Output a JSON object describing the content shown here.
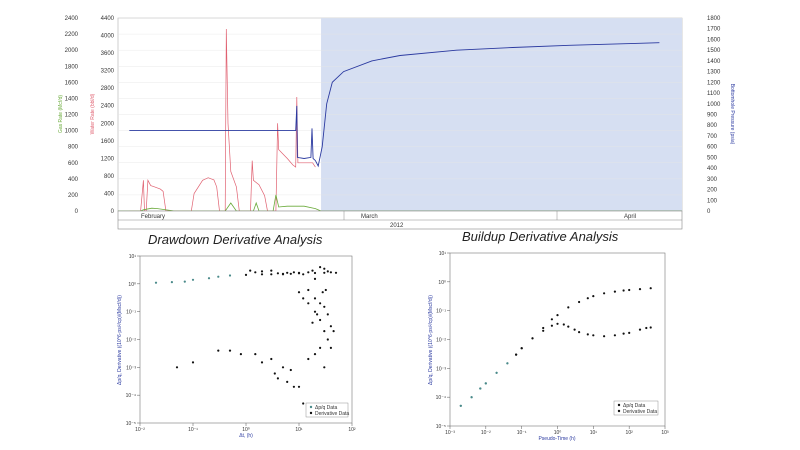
{
  "colors": {
    "gas": "#6aaa3a",
    "water": "#e06070",
    "pressure": "#2b3aa0",
    "shade": "#d6dff2",
    "points_light": "#4a8a8a",
    "points_dark": "#111111"
  },
  "sections": {
    "drawdown_title": "Drawdown Derivative Analysis",
    "buildup_title": "Buildup Derivative Analysis"
  },
  "chart_data": [
    {
      "type": "line",
      "id": "production-history",
      "y1label": "Gas Rate (Mcf/d)",
      "y2label": "Water Rate (bbl/d)",
      "y3label": "Bottomhole Pressure (psia)",
      "y1ticks": [
        "0",
        "200",
        "400",
        "600",
        "800",
        "1000",
        "1200",
        "1400",
        "1600",
        "1800",
        "2000",
        "2200",
        "2400"
      ],
      "y2ticks": [
        "0",
        "400",
        "800",
        "1200",
        "1600",
        "2000",
        "2400",
        "2800",
        "3200",
        "3600",
        "4000",
        "4400"
      ],
      "y3ticks": [
        "0",
        "100",
        "200",
        "300",
        "400",
        "500",
        "600",
        "700",
        "800",
        "900",
        "1000",
        "1100",
        "1200",
        "1300",
        "1400",
        "1500",
        "1600",
        "1700",
        "1800"
      ],
      "y1lim": [
        0,
        2400
      ],
      "y2lim": [
        0,
        4400
      ],
      "y3lim": [
        0,
        1800
      ],
      "months": [
        "February",
        "March",
        "April"
      ],
      "year": "2012",
      "shaded_from_x": 0.36,
      "series": [
        {
          "key": "water",
          "points": [
            [
              0.02,
              0
            ],
            [
              0.04,
              0
            ],
            [
              0.045,
              700
            ],
            [
              0.047,
              0
            ],
            [
              0.05,
              0
            ],
            [
              0.053,
              700
            ],
            [
              0.058,
              580
            ],
            [
              0.065,
              550
            ],
            [
              0.075,
              500
            ],
            [
              0.08,
              450
            ],
            [
              0.085,
              0
            ],
            [
              0.13,
              0
            ],
            [
              0.135,
              400
            ],
            [
              0.15,
              700
            ],
            [
              0.16,
              760
            ],
            [
              0.17,
              710
            ],
            [
              0.175,
              550
            ],
            [
              0.18,
              0
            ],
            [
              0.19,
              0
            ],
            [
              0.192,
              4150
            ],
            [
              0.195,
              2000
            ],
            [
              0.2,
              900
            ],
            [
              0.21,
              550
            ],
            [
              0.215,
              0
            ],
            [
              0.235,
              0
            ],
            [
              0.238,
              1150
            ],
            [
              0.24,
              700
            ],
            [
              0.25,
              600
            ],
            [
              0.26,
              350
            ],
            [
              0.265,
              0
            ],
            [
              0.28,
              0
            ],
            [
              0.283,
              2000
            ],
            [
              0.285,
              1400
            ],
            [
              0.3,
              1200
            ],
            [
              0.31,
              1050
            ],
            [
              0.315,
              1000
            ],
            [
              0.317,
              2600
            ],
            [
              0.319,
              1100
            ],
            [
              0.33,
              1100
            ],
            [
              0.345,
              1100
            ],
            [
              0.35,
              1000
            ]
          ]
        },
        {
          "key": "gas",
          "points": [
            [
              0.0,
              0
            ],
            [
              0.04,
              0
            ],
            [
              0.045,
              15
            ],
            [
              0.06,
              35
            ],
            [
              0.07,
              30
            ],
            [
              0.1,
              0
            ],
            [
              0.15,
              0
            ],
            [
              0.19,
              0
            ],
            [
              0.2,
              100
            ],
            [
              0.205,
              50
            ],
            [
              0.21,
              0
            ],
            [
              0.24,
              0
            ],
            [
              0.245,
              100
            ],
            [
              0.25,
              0
            ],
            [
              0.275,
              0
            ],
            [
              0.28,
              200
            ],
            [
              0.285,
              50
            ],
            [
              0.3,
              60
            ],
            [
              0.31,
              60
            ],
            [
              0.33,
              60
            ],
            [
              0.35,
              30
            ],
            [
              0.36,
              0
            ],
            [
              1.0,
              0
            ]
          ]
        },
        {
          "key": "pressure",
          "points": [
            [
              0.02,
              750
            ],
            [
              0.315,
              750
            ],
            [
              0.317,
              980
            ],
            [
              0.318,
              500
            ],
            [
              0.33,
              490
            ],
            [
              0.342,
              500
            ],
            [
              0.344,
              770
            ],
            [
              0.346,
              490
            ],
            [
              0.35,
              470
            ],
            [
              0.355,
              420
            ],
            [
              0.362,
              600
            ],
            [
              0.37,
              1000
            ],
            [
              0.38,
              1200
            ],
            [
              0.4,
              1300
            ],
            [
              0.45,
              1400
            ],
            [
              0.5,
              1450
            ],
            [
              0.6,
              1500
            ],
            [
              0.7,
              1525
            ],
            [
              0.8,
              1545
            ],
            [
              0.9,
              1560
            ],
            [
              0.96,
              1570
            ]
          ]
        }
      ]
    },
    {
      "type": "scatter",
      "id": "drawdown-derivative",
      "title": "Drawdown Derivative Analysis",
      "xlabel": "Δt, (h)",
      "ylabel": "Δp/q, Derivative ((10^6·psi²/cp)/(Mscf/d))",
      "xscale": "log",
      "yscale": "log",
      "legend": [
        "Δp/q Data",
        "Derivative Data"
      ],
      "series": [
        {
          "name": "Δp/q Data",
          "points": [
            [
              0.02,
              1.1
            ],
            [
              0.04,
              1.15
            ],
            [
              0.07,
              1.2
            ],
            [
              0.1,
              1.4
            ],
            [
              0.2,
              1.6
            ],
            [
              0.3,
              1.8
            ],
            [
              0.5,
              2.0
            ],
            [
              1,
              2.1
            ],
            [
              2,
              2.2
            ],
            [
              3,
              2.2
            ],
            [
              5,
              2.3
            ],
            [
              7,
              2.3
            ],
            [
              10,
              2.4
            ],
            [
              20,
              2.45
            ],
            [
              30,
              2.5
            ],
            [
              50,
              2.5
            ]
          ]
        },
        {
          "name": "Derivative Data",
          "points": [
            [
              0.05,
              0.001
            ],
            [
              0.1,
              0.0015
            ],
            [
              0.3,
              0.004
            ],
            [
              0.5,
              0.004
            ],
            [
              0.8,
              0.003
            ],
            [
              1.5,
              0.003
            ],
            [
              2,
              0.0015
            ],
            [
              3,
              0.002
            ],
            [
              3.5,
              0.0006
            ],
            [
              4,
              0.0004
            ],
            [
              5,
              0.001
            ],
            [
              6,
              0.0003
            ],
            [
              7,
              0.0008
            ],
            [
              8,
              0.0002
            ],
            [
              10,
              0.0002
            ],
            [
              12,
              5e-05
            ],
            [
              15,
              0.002
            ],
            [
              20,
              0.003
            ],
            [
              25,
              0.005
            ],
            [
              30,
              0.001
            ],
            [
              1.2,
              3
            ],
            [
              1.5,
              2.6
            ],
            [
              2,
              2.8
            ],
            [
              3,
              3.0
            ],
            [
              4,
              2.4
            ],
            [
              5,
              2.2
            ],
            [
              6,
              2.5
            ],
            [
              8,
              2.6
            ],
            [
              10,
              2.5
            ],
            [
              12,
              2.2
            ],
            [
              15,
              2.6
            ],
            [
              18,
              3.0
            ],
            [
              20,
              1.5
            ],
            [
              25,
              4.0
            ],
            [
              30,
              3.5
            ],
            [
              35,
              2.8
            ],
            [
              40,
              2.6
            ],
            [
              10,
              0.5
            ],
            [
              12,
              0.3
            ],
            [
              15,
              0.2
            ],
            [
              20,
              0.1
            ],
            [
              25,
              0.05
            ],
            [
              30,
              0.02
            ],
            [
              35,
              0.01
            ],
            [
              40,
              0.005
            ],
            [
              15,
              0.6
            ],
            [
              20,
              0.3
            ],
            [
              25,
              0.2
            ],
            [
              30,
              0.15
            ],
            [
              35,
              0.08
            ],
            [
              40,
              0.03
            ],
            [
              45,
              0.02
            ],
            [
              22,
              0.08
            ],
            [
              18,
              0.04
            ],
            [
              28,
              0.5
            ],
            [
              32,
              0.6
            ]
          ]
        }
      ]
    },
    {
      "type": "scatter",
      "id": "buildup-derivative",
      "title": "Buildup Derivative Analysis",
      "xlabel": "Pseudo-Time (h)",
      "ylabel": "Δp/q, Derivative ((10^6·psi²/cp)/(Mscf/d))",
      "xscale": "log",
      "yscale": "log",
      "legend": [
        "Δp/q Data",
        "Derivative Data"
      ],
      "series": [
        {
          "name": "Δp/q Data",
          "points": [
            [
              0.002,
              5e-05
            ],
            [
              0.004,
              0.0001
            ],
            [
              0.007,
              0.0002
            ],
            [
              0.01,
              0.0003
            ],
            [
              0.02,
              0.0007
            ],
            [
              0.04,
              0.0015
            ],
            [
              0.07,
              0.003
            ],
            [
              0.1,
              0.005
            ],
            [
              0.2,
              0.011
            ],
            [
              0.4,
              0.025
            ],
            [
              0.7,
              0.05
            ],
            [
              1,
              0.07
            ],
            [
              2,
              0.13
            ],
            [
              4,
              0.2
            ],
            [
              7,
              0.27
            ],
            [
              10,
              0.32
            ],
            [
              20,
              0.4
            ],
            [
              40,
              0.46
            ],
            [
              70,
              0.5
            ],
            [
              100,
              0.52
            ],
            [
              200,
              0.56
            ],
            [
              400,
              0.6
            ]
          ]
        },
        {
          "name": "Derivative Data",
          "points": [
            [
              0.002,
              5e-05
            ],
            [
              0.004,
              0.0001
            ],
            [
              0.007,
              0.0002
            ],
            [
              0.01,
              0.0003
            ],
            [
              0.02,
              0.0007
            ],
            [
              0.04,
              0.0015
            ],
            [
              0.07,
              0.003
            ],
            [
              0.1,
              0.005
            ],
            [
              0.2,
              0.011
            ],
            [
              0.4,
              0.02
            ],
            [
              0.7,
              0.03
            ],
            [
              1,
              0.035
            ],
            [
              1.5,
              0.033
            ],
            [
              2,
              0.028
            ],
            [
              3,
              0.022
            ],
            [
              4,
              0.018
            ],
            [
              7,
              0.015
            ],
            [
              10,
              0.014
            ],
            [
              20,
              0.013
            ],
            [
              40,
              0.014
            ],
            [
              70,
              0.016
            ],
            [
              100,
              0.017
            ],
            [
              200,
              0.022
            ],
            [
              300,
              0.025
            ],
            [
              400,
              0.026
            ]
          ]
        }
      ]
    }
  ]
}
